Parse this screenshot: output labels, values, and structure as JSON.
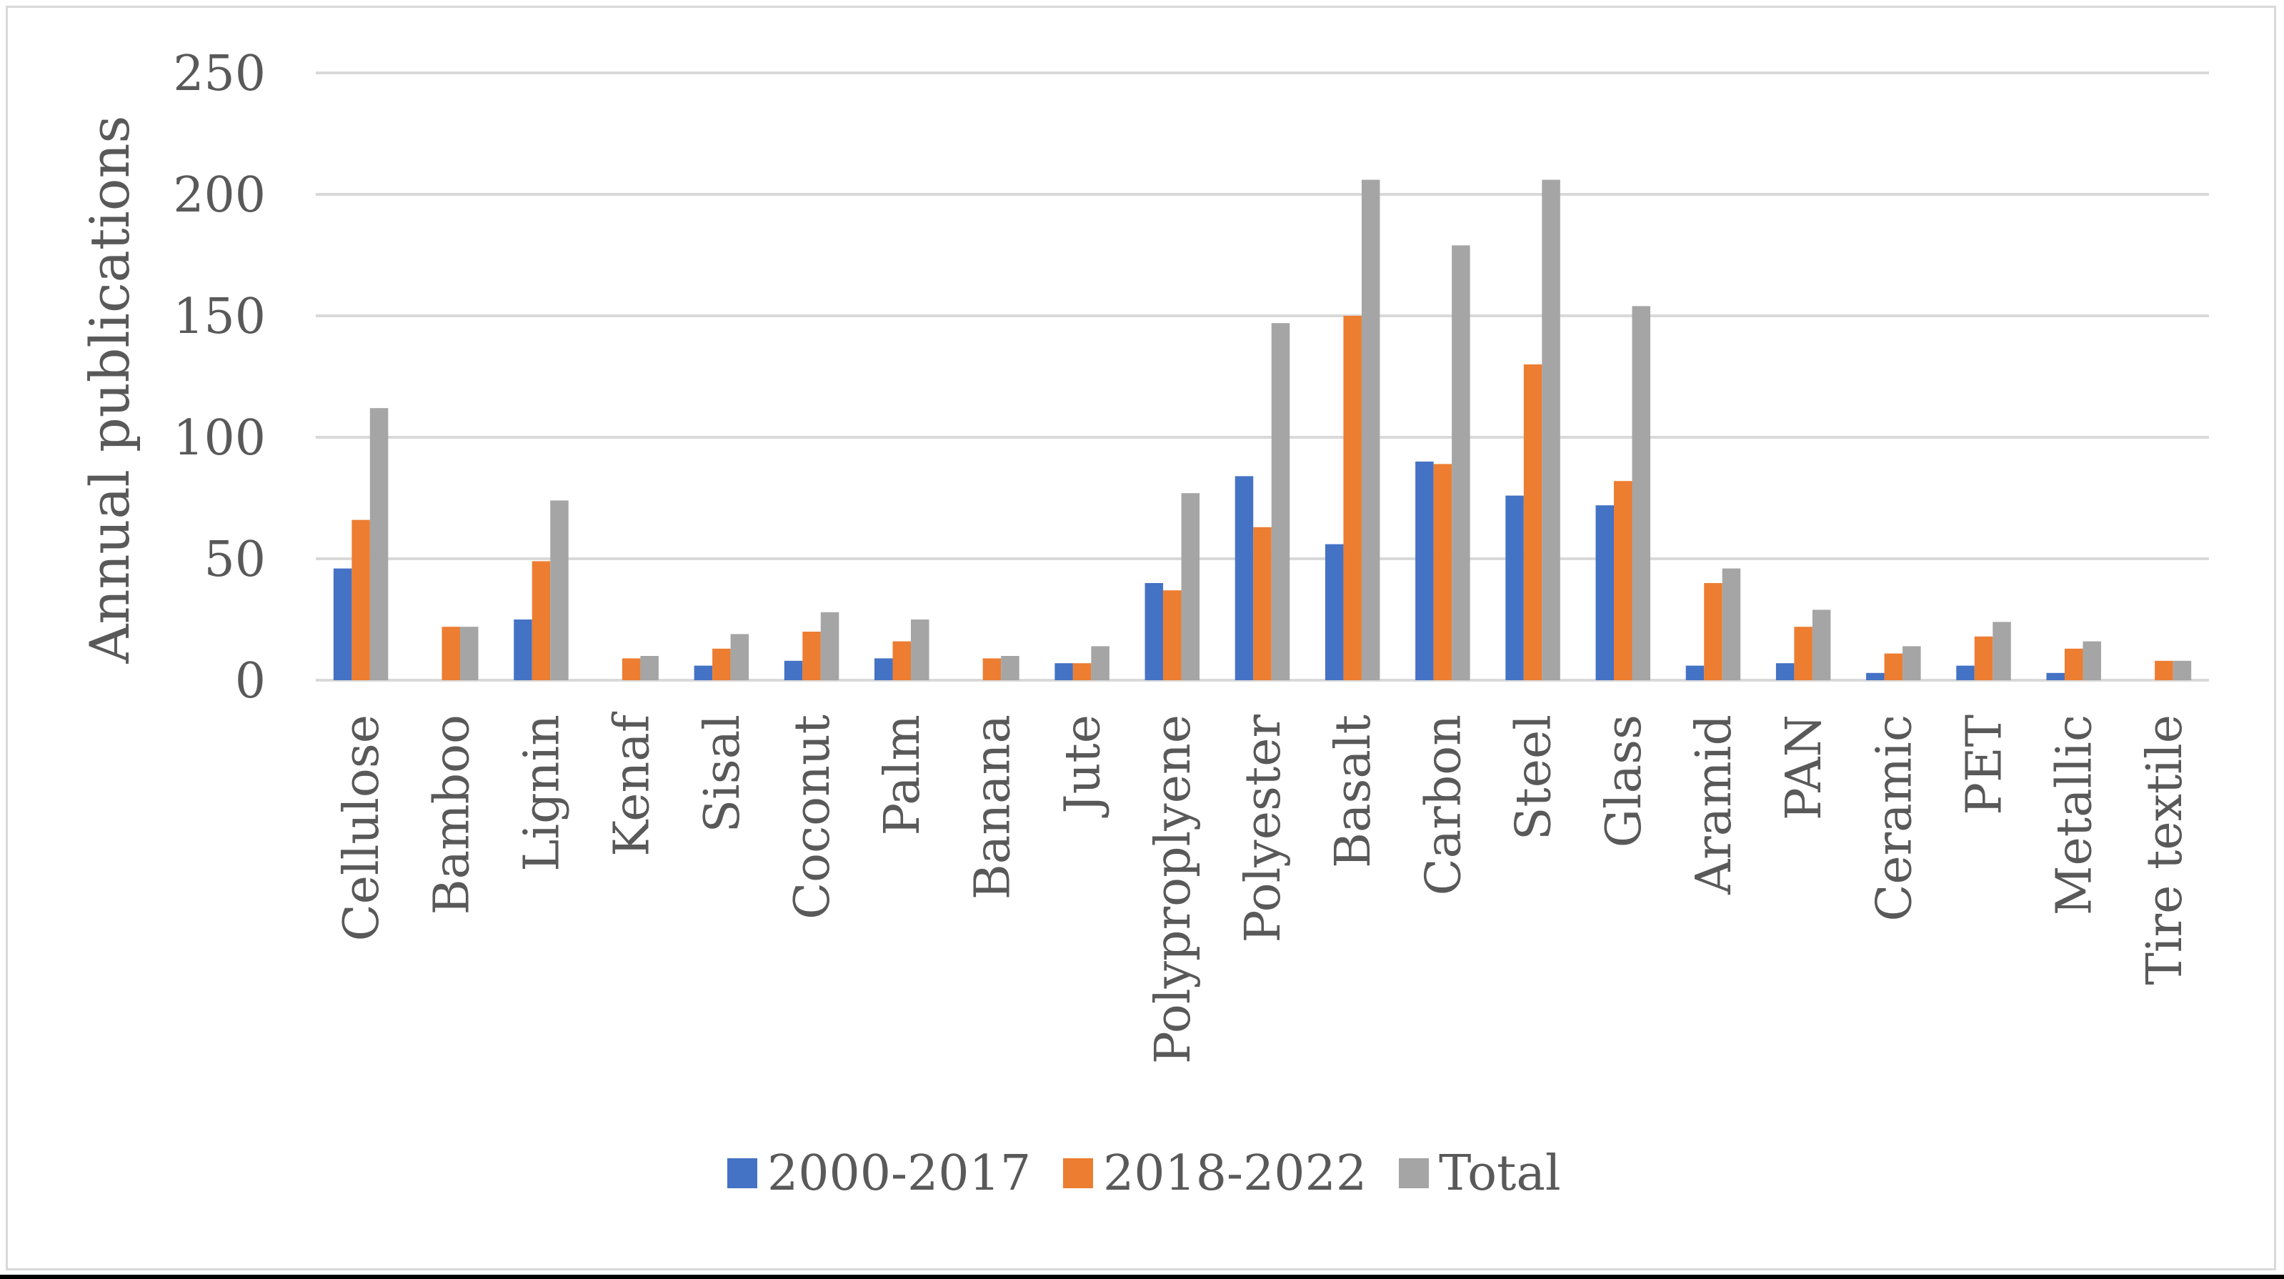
{
  "chart_data": {
    "type": "bar",
    "title": "",
    "xlabel": "",
    "ylabel": "Annual publications",
    "ylim": [
      0,
      250
    ],
    "yticks": [
      0,
      50,
      100,
      150,
      200,
      250
    ],
    "grid": true,
    "legend_position": "bottom",
    "categories": [
      "Cellulose",
      "Bamboo",
      "Lignin",
      "Kenaf",
      "Sisal",
      "Coconut",
      "Palm",
      "Banana",
      "Jute",
      "Polyproplyene",
      "Polyester",
      "Basalt",
      "Carbon",
      "Steel",
      "Glass",
      "Aramid",
      "PAN",
      "Ceramic",
      "PET",
      "Metallic",
      "Tire textile"
    ],
    "series": [
      {
        "name": "2000-2017",
        "color": "#4472c4",
        "values": [
          46,
          0,
          25,
          0,
          6,
          8,
          9,
          0,
          7,
          40,
          84,
          56,
          90,
          76,
          72,
          6,
          7,
          3,
          6,
          3,
          0
        ]
      },
      {
        "name": "2018-2022",
        "color": "#ed7d31",
        "values": [
          66,
          22,
          49,
          9,
          13,
          20,
          16,
          9,
          7,
          37,
          63,
          150,
          89,
          130,
          82,
          40,
          22,
          11,
          18,
          13,
          8
        ]
      },
      {
        "name": "Total",
        "color": "#a5a5a5",
        "values": [
          112,
          22,
          74,
          10,
          19,
          28,
          25,
          10,
          14,
          77,
          147,
          206,
          179,
          206,
          154,
          46,
          29,
          14,
          24,
          16,
          8
        ]
      }
    ]
  }
}
